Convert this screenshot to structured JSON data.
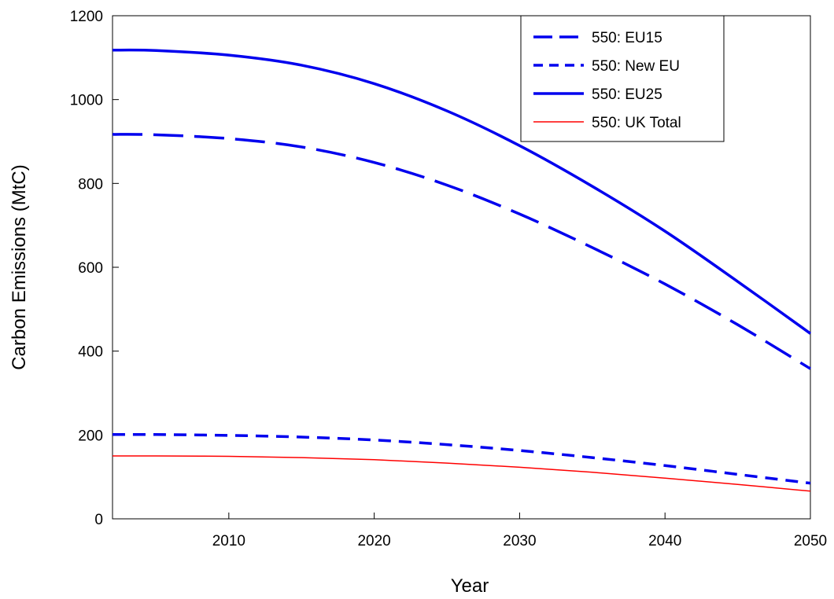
{
  "chart_data": {
    "type": "line",
    "title": "",
    "xlabel": "Year",
    "ylabel": "Carbon Emissions (MtC)",
    "xlim": [
      2002,
      2050
    ],
    "ylim": [
      0,
      1200
    ],
    "xticks": [
      2010,
      2020,
      2030,
      2040,
      2050
    ],
    "yticks": [
      0,
      200,
      400,
      600,
      800,
      1000,
      1200
    ],
    "grid": false,
    "legend_position": "top-right",
    "x": [
      2002,
      2005,
      2010,
      2015,
      2020,
      2025,
      2030,
      2035,
      2040,
      2045,
      2050
    ],
    "series": [
      {
        "name": "550: EU15",
        "color": "#0000ee",
        "style": "long-dash",
        "values": [
          917,
          916,
          907,
          887,
          850,
          796,
          727,
          647,
          560,
          463,
          358
        ]
      },
      {
        "name": "550: New EU",
        "color": "#0000ee",
        "style": "short-dash",
        "values": [
          201,
          201,
          199,
          195,
          188,
          177,
          163,
          146,
          127,
          106,
          85
        ]
      },
      {
        "name": "550: EU25",
        "color": "#0000ee",
        "style": "solid",
        "values": [
          1118,
          1117,
          1106,
          1082,
          1038,
          973,
          890,
          793,
          686,
          566,
          442
        ]
      },
      {
        "name": "550: UK Total",
        "color": "#ff0000",
        "style": "solid-thin",
        "values": [
          150,
          150,
          149,
          146,
          141,
          133,
          123,
          111,
          97,
          82,
          66
        ]
      }
    ]
  }
}
